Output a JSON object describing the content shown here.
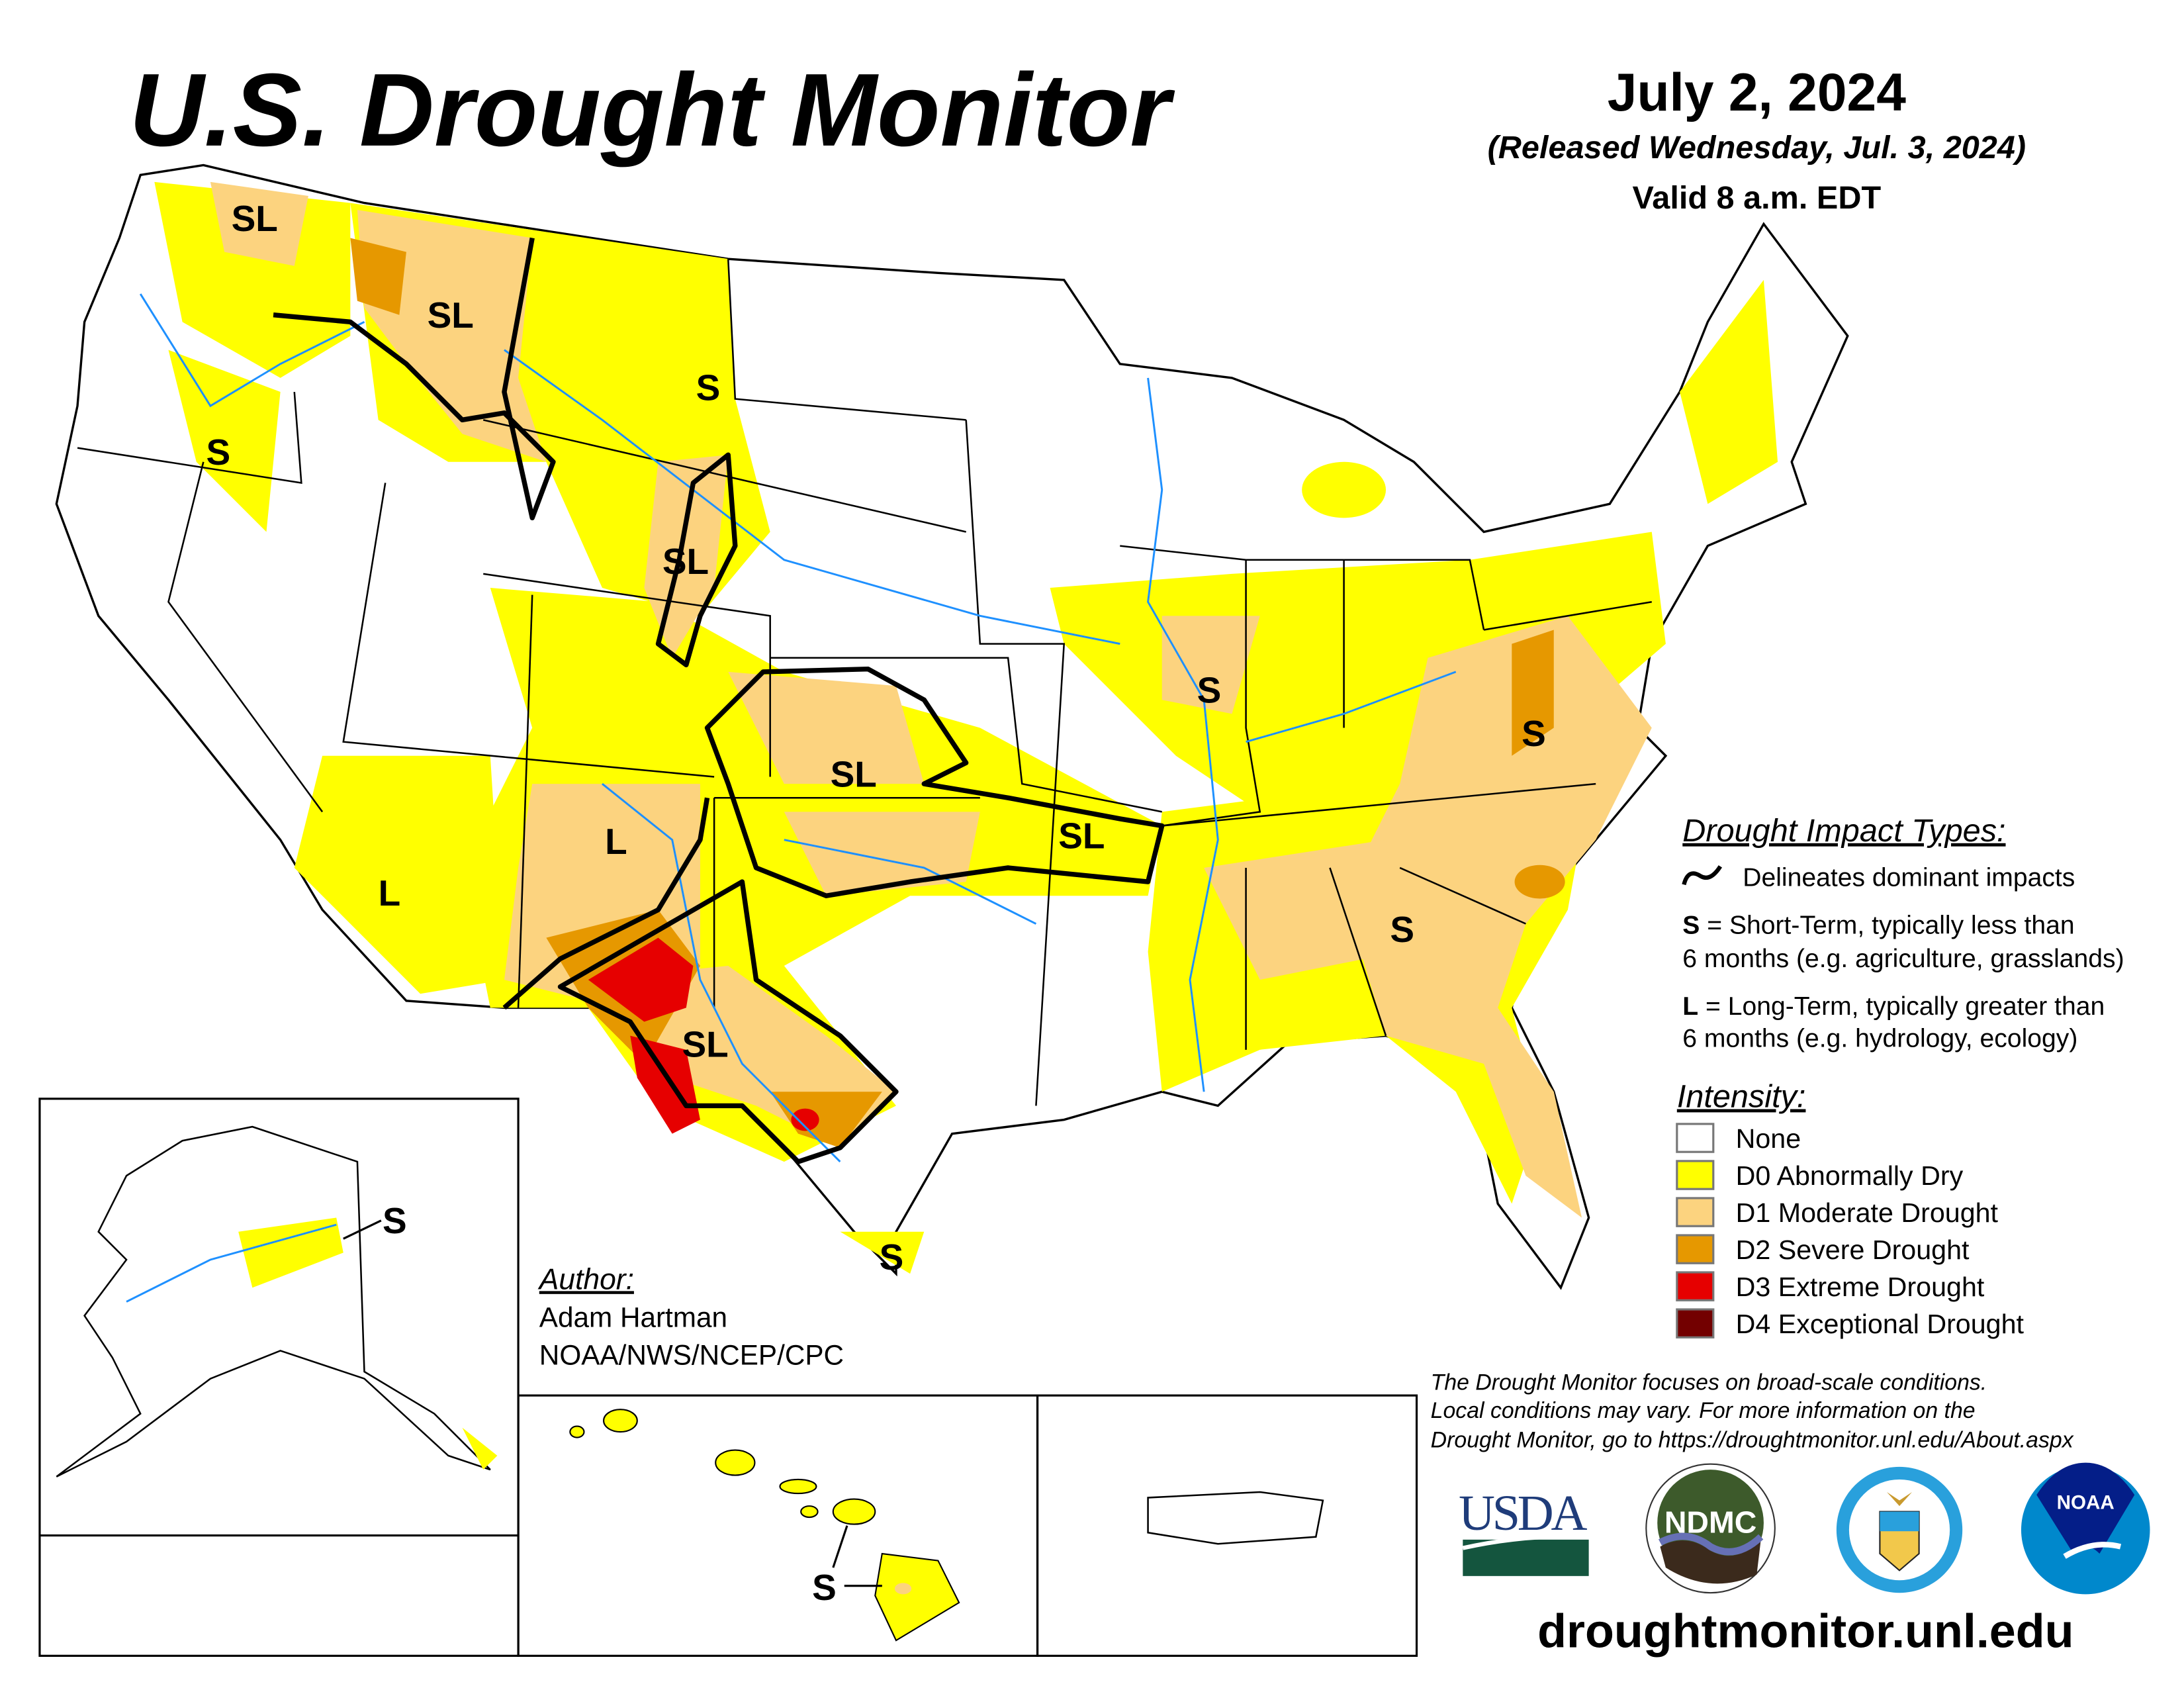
{
  "header": {
    "title": "U.S. Drought Monitor",
    "date": "July 2, 2024",
    "released": "(Released Wednesday, Jul. 3, 2024)",
    "valid": "Valid 8 a.m. EDT"
  },
  "map": {
    "labels": [
      "SL",
      "SL",
      "S",
      "S",
      "SL",
      "S",
      "S",
      "SL",
      "SL",
      "L",
      "L",
      "SL",
      "S",
      "S",
      "S",
      "S"
    ]
  },
  "legend": {
    "impact_title": "Drought Impact Types:",
    "delineates": "Delineates dominant impacts",
    "s_key": "S",
    "s_line1": " = Short-Term, typically less than",
    "s_line2": "6 months (e.g. agriculture, grasslands)",
    "l_key": "L",
    "l_line1": " = Long-Term, typically greater than",
    "l_line2": "6 months (e.g. hydrology, ecology)",
    "intensity_title": "Intensity:",
    "intensity": [
      {
        "label": "None",
        "color": "#ffffff"
      },
      {
        "label": "D0 Abnormally Dry",
        "color": "#ffff00"
      },
      {
        "label": "D1 Moderate Drought",
        "color": "#fcd37f"
      },
      {
        "label": "D2 Severe Drought",
        "color": "#e69800"
      },
      {
        "label": "D3 Extreme Drought",
        "color": "#e60000"
      },
      {
        "label": "D4 Exceptional Drought",
        "color": "#730000"
      }
    ]
  },
  "author": {
    "heading": "Author:",
    "name": "Adam Hartman",
    "org": "NOAA/NWS/NCEP/CPC"
  },
  "notes": [
    "The Drought Monitor focuses on broad-scale conditions.",
    "Local conditions may vary. For more information on the",
    "Drought Monitor, go to https://droughtmonitor.unl.edu/About.aspx"
  ],
  "logos": {
    "usda": "USDA",
    "ndmc": "NDMC",
    "noaa": "NOAA"
  },
  "footer": {
    "url": "droughtmonitor.unl.edu"
  },
  "colors": {
    "water": "#1e90ff",
    "outline": "#000000"
  }
}
